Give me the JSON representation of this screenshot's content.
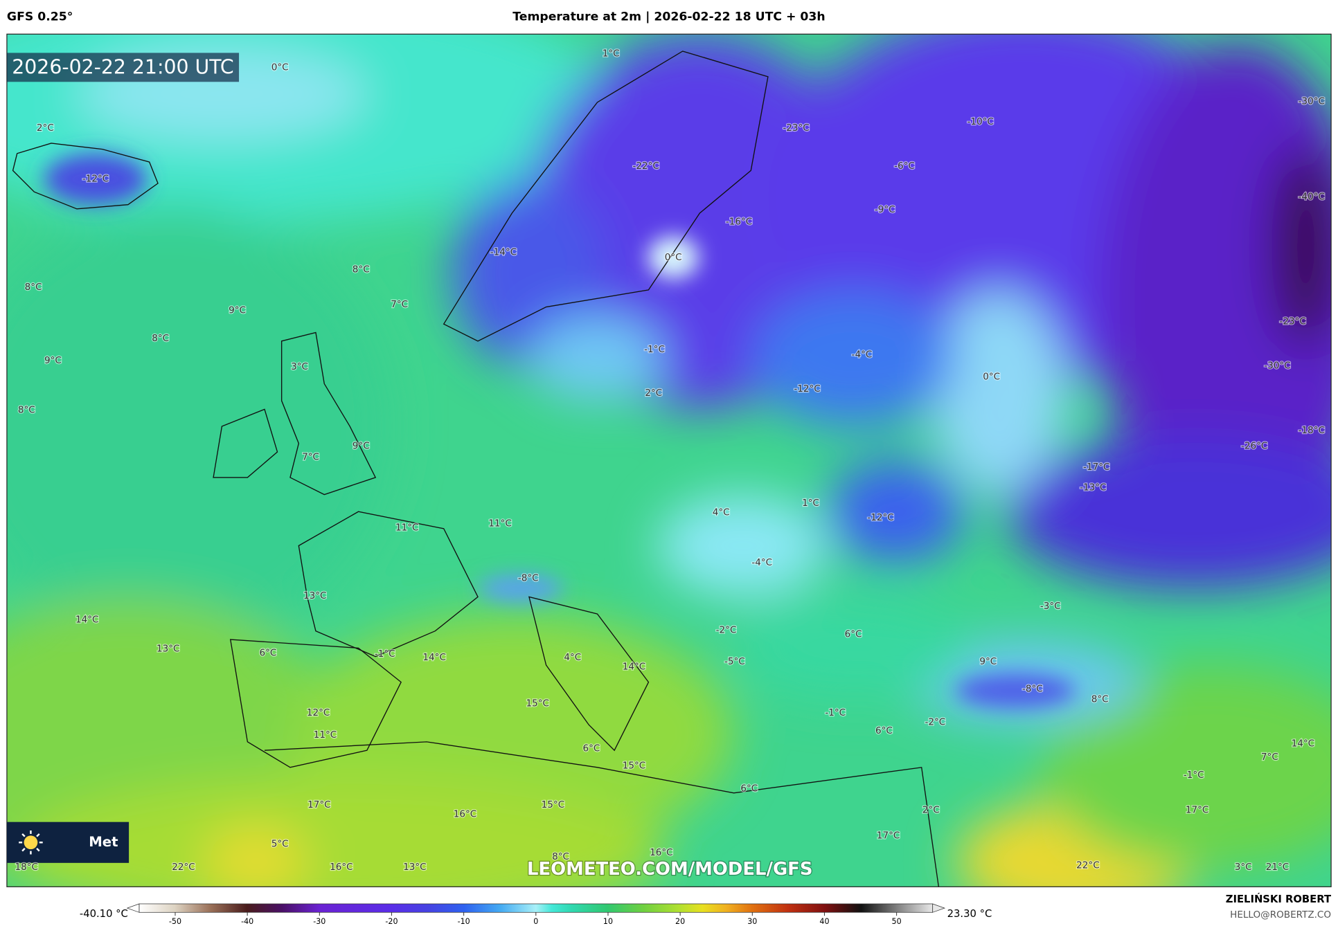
{
  "header": {
    "model": "GFS 0.25°",
    "title": "Temperature at 2m | 2026-02-22 18 UTC + 03h"
  },
  "map": {
    "timestamp": "2026-02-22 21:00 UTC",
    "watermark": "LEOMETEO.COM/MODEL/GFS",
    "logo": "Met",
    "labels": [
      "0°C",
      "1°C",
      "2°C",
      "-12°C",
      "-23°C",
      "-10°C",
      "-30°C",
      "-22°C",
      "-6°C",
      "-9°C",
      "-40°C",
      "-16°C",
      "0°C",
      "-14°C",
      "8°C",
      "8°C",
      "7°C",
      "9°C",
      "8°C",
      "9°C",
      "3°C",
      "-1°C",
      "-4°C",
      "0°C",
      "-23°C",
      "-30°C",
      "8°C",
      "-12°C",
      "2°C",
      "9°C",
      "7°C",
      "-26°C",
      "-18°C",
      "-17°C",
      "-13°C",
      "1°C",
      "11°C",
      "11°C",
      "4°C",
      "-12°C",
      "-4°C",
      "-8°C",
      "13°C",
      "-3°C",
      "14°C",
      "-2°C",
      "6°C",
      "13°C",
      "6°C",
      "-1°C",
      "14°C",
      "4°C",
      "-5°C",
      "9°C",
      "14°C",
      "-8°C",
      "8°C",
      "15°C",
      "-1°C",
      "12°C",
      "-2°C",
      "6°C",
      "11°C",
      "6°C",
      "14°C",
      "7°C",
      "15°C",
      "-1°C",
      "6°C",
      "17°C",
      "15°C",
      "2°C",
      "17°C",
      "16°C",
      "17°C",
      "5°C",
      "8°C",
      "16°C",
      "18°C",
      "22°C",
      "16°C",
      "13°C",
      "22°C",
      "3°C",
      "21°C"
    ]
  },
  "colorbar": {
    "min_label": "-40.10 °C",
    "max_label": "23.30 °C",
    "lim": [
      -55,
      55
    ],
    "ticks": [
      -50,
      -40,
      -30,
      -20,
      -10,
      0,
      10,
      20,
      30,
      40,
      50
    ]
  },
  "footer": {
    "author": "ZIELIŃSKI ROBERT",
    "email": "HELLO@ROBERTZ.CO"
  }
}
